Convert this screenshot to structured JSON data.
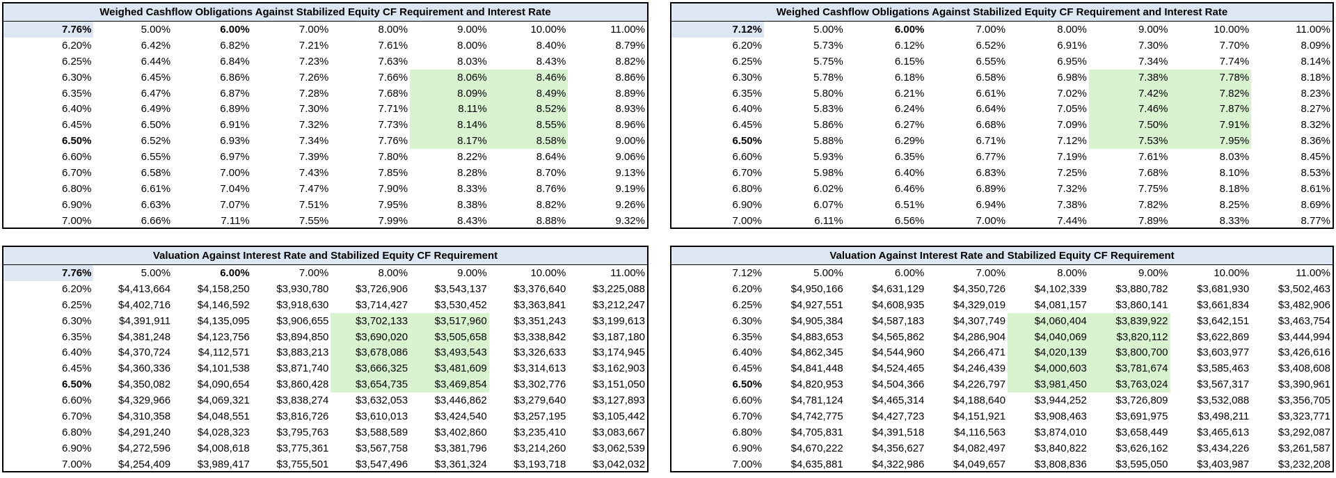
{
  "colors": {
    "title_fill": "#dde6f3",
    "highlight_green": "#d9f2d0",
    "corner_fill": "#dde6f3",
    "border": "#000000"
  },
  "panels": [
    {
      "id": "weighed-left",
      "title": "Weighed Cashflow Obligations Against Stabilized Equity CF Requirement and Interest Rate",
      "corner": "7.76%",
      "corner_bold": true,
      "corner_highlight": true,
      "bold_col": 1,
      "bold_row": 6,
      "green_cols": [
        4,
        5
      ],
      "green_rows": [
        2,
        3,
        4,
        5,
        6
      ],
      "headers": [
        "5.00%",
        "6.00%",
        "7.00%",
        "8.00%",
        "9.00%",
        "10.00%",
        "11.00%"
      ],
      "rows": [
        {
          "label": "6.20%",
          "values": [
            "6.42%",
            "6.82%",
            "7.21%",
            "7.61%",
            "8.00%",
            "8.40%",
            "8.79%"
          ]
        },
        {
          "label": "6.25%",
          "values": [
            "6.44%",
            "6.84%",
            "7.23%",
            "7.63%",
            "8.03%",
            "8.43%",
            "8.82%"
          ]
        },
        {
          "label": "6.30%",
          "values": [
            "6.45%",
            "6.86%",
            "7.26%",
            "7.66%",
            "8.06%",
            "8.46%",
            "8.86%"
          ]
        },
        {
          "label": "6.35%",
          "values": [
            "6.47%",
            "6.87%",
            "7.28%",
            "7.68%",
            "8.09%",
            "8.49%",
            "8.89%"
          ]
        },
        {
          "label": "6.40%",
          "values": [
            "6.49%",
            "6.89%",
            "7.30%",
            "7.71%",
            "8.11%",
            "8.52%",
            "8.93%"
          ]
        },
        {
          "label": "6.45%",
          "values": [
            "6.50%",
            "6.91%",
            "7.32%",
            "7.73%",
            "8.14%",
            "8.55%",
            "8.96%"
          ]
        },
        {
          "label": "6.50%",
          "values": [
            "6.52%",
            "6.93%",
            "7.34%",
            "7.76%",
            "8.17%",
            "8.58%",
            "9.00%"
          ]
        },
        {
          "label": "6.60%",
          "values": [
            "6.55%",
            "6.97%",
            "7.39%",
            "7.80%",
            "8.22%",
            "8.64%",
            "9.06%"
          ]
        },
        {
          "label": "6.70%",
          "values": [
            "6.58%",
            "7.00%",
            "7.43%",
            "7.85%",
            "8.28%",
            "8.70%",
            "9.13%"
          ]
        },
        {
          "label": "6.80%",
          "values": [
            "6.61%",
            "7.04%",
            "7.47%",
            "7.90%",
            "8.33%",
            "8.76%",
            "9.19%"
          ]
        },
        {
          "label": "6.90%",
          "values": [
            "6.63%",
            "7.07%",
            "7.51%",
            "7.95%",
            "8.38%",
            "8.82%",
            "9.26%"
          ]
        },
        {
          "label": "7.00%",
          "values": [
            "6.66%",
            "7.11%",
            "7.55%",
            "7.99%",
            "8.43%",
            "8.88%",
            "9.32%"
          ]
        }
      ]
    },
    {
      "id": "weighed-right",
      "title": "Weighed Cashflow Obligations Against Stabilized Equity CF Requirement and Interest Rate",
      "corner": "7.12%",
      "corner_bold": true,
      "corner_highlight": true,
      "bold_col": 1,
      "bold_row": 6,
      "green_cols": [
        4,
        5
      ],
      "green_rows": [
        2,
        3,
        4,
        5,
        6
      ],
      "headers": [
        "5.00%",
        "6.00%",
        "7.00%",
        "8.00%",
        "9.00%",
        "10.00%",
        "11.00%"
      ],
      "rows": [
        {
          "label": "6.20%",
          "values": [
            "5.73%",
            "6.12%",
            "6.52%",
            "6.91%",
            "7.30%",
            "7.70%",
            "8.09%"
          ]
        },
        {
          "label": "6.25%",
          "values": [
            "5.75%",
            "6.15%",
            "6.55%",
            "6.95%",
            "7.34%",
            "7.74%",
            "8.14%"
          ]
        },
        {
          "label": "6.30%",
          "values": [
            "5.78%",
            "6.18%",
            "6.58%",
            "6.98%",
            "7.38%",
            "7.78%",
            "8.18%"
          ]
        },
        {
          "label": "6.35%",
          "values": [
            "5.80%",
            "6.21%",
            "6.61%",
            "7.02%",
            "7.42%",
            "7.82%",
            "8.23%"
          ]
        },
        {
          "label": "6.40%",
          "values": [
            "5.83%",
            "6.24%",
            "6.64%",
            "7.05%",
            "7.46%",
            "7.87%",
            "8.27%"
          ]
        },
        {
          "label": "6.45%",
          "values": [
            "5.86%",
            "6.27%",
            "6.68%",
            "7.09%",
            "7.50%",
            "7.91%",
            "8.32%"
          ]
        },
        {
          "label": "6.50%",
          "values": [
            "5.88%",
            "6.29%",
            "6.71%",
            "7.12%",
            "7.53%",
            "7.95%",
            "8.36%"
          ]
        },
        {
          "label": "6.60%",
          "values": [
            "5.93%",
            "6.35%",
            "6.77%",
            "7.19%",
            "7.61%",
            "8.03%",
            "8.45%"
          ]
        },
        {
          "label": "6.70%",
          "values": [
            "5.98%",
            "6.40%",
            "6.83%",
            "7.25%",
            "7.68%",
            "8.10%",
            "8.53%"
          ]
        },
        {
          "label": "6.80%",
          "values": [
            "6.02%",
            "6.46%",
            "6.89%",
            "7.32%",
            "7.75%",
            "8.18%",
            "8.61%"
          ]
        },
        {
          "label": "6.90%",
          "values": [
            "6.07%",
            "6.51%",
            "6.94%",
            "7.38%",
            "7.82%",
            "8.25%",
            "8.69%"
          ]
        },
        {
          "label": "7.00%",
          "values": [
            "6.11%",
            "6.56%",
            "7.00%",
            "7.44%",
            "7.89%",
            "8.33%",
            "8.77%"
          ]
        }
      ]
    },
    {
      "id": "valuation-left",
      "title": "Valuation Against Interest Rate and Stabilized Equity CF Requirement",
      "corner": "7.76%",
      "corner_bold": true,
      "corner_highlight": true,
      "bold_col": 1,
      "bold_row": 6,
      "green_cols": [
        3,
        4
      ],
      "green_rows": [
        2,
        3,
        4,
        5,
        6
      ],
      "headers": [
        "5.00%",
        "6.00%",
        "7.00%",
        "8.00%",
        "9.00%",
        "10.00%",
        "11.00%"
      ],
      "rows": [
        {
          "label": "6.20%",
          "values": [
            "$4,413,664",
            "$4,158,250",
            "$3,930,780",
            "$3,726,906",
            "$3,543,137",
            "$3,376,640",
            "$3,225,088"
          ]
        },
        {
          "label": "6.25%",
          "values": [
            "$4,402,716",
            "$4,146,592",
            "$3,918,630",
            "$3,714,427",
            "$3,530,452",
            "$3,363,841",
            "$3,212,247"
          ]
        },
        {
          "label": "6.30%",
          "values": [
            "$4,391,911",
            "$4,135,095",
            "$3,906,655",
            "$3,702,133",
            "$3,517,960",
            "$3,351,243",
            "$3,199,613"
          ]
        },
        {
          "label": "6.35%",
          "values": [
            "$4,381,248",
            "$4,123,756",
            "$3,894,850",
            "$3,690,020",
            "$3,505,658",
            "$3,338,842",
            "$3,187,180"
          ]
        },
        {
          "label": "6.40%",
          "values": [
            "$4,370,724",
            "$4,112,571",
            "$3,883,213",
            "$3,678,086",
            "$3,493,543",
            "$3,326,633",
            "$3,174,945"
          ]
        },
        {
          "label": "6.45%",
          "values": [
            "$4,360,336",
            "$4,101,538",
            "$3,871,740",
            "$3,666,325",
            "$3,481,609",
            "$3,314,613",
            "$3,162,903"
          ]
        },
        {
          "label": "6.50%",
          "values": [
            "$4,350,082",
            "$4,090,654",
            "$3,860,428",
            "$3,654,735",
            "$3,469,854",
            "$3,302,776",
            "$3,151,050"
          ]
        },
        {
          "label": "6.60%",
          "values": [
            "$4,329,966",
            "$4,069,321",
            "$3,838,274",
            "$3,632,053",
            "$3,446,862",
            "$3,279,640",
            "$3,127,893"
          ]
        },
        {
          "label": "6.70%",
          "values": [
            "$4,310,358",
            "$4,048,551",
            "$3,816,726",
            "$3,610,013",
            "$3,424,540",
            "$3,257,195",
            "$3,105,442"
          ]
        },
        {
          "label": "6.80%",
          "values": [
            "$4,291,240",
            "$4,028,323",
            "$3,795,763",
            "$3,588,589",
            "$3,402,860",
            "$3,235,410",
            "$3,083,667"
          ]
        },
        {
          "label": "6.90%",
          "values": [
            "$4,272,596",
            "$4,008,618",
            "$3,775,361",
            "$3,567,758",
            "$3,381,796",
            "$3,214,260",
            "$3,062,539"
          ]
        },
        {
          "label": "7.00%",
          "values": [
            "$4,254,409",
            "$3,989,417",
            "$3,755,501",
            "$3,547,496",
            "$3,361,324",
            "$3,193,718",
            "$3,042,032"
          ]
        }
      ]
    },
    {
      "id": "valuation-right",
      "title": "Valuation Against Interest Rate and Stabilized Equity CF Requirement",
      "corner": "7.12%",
      "corner_bold": false,
      "corner_highlight": false,
      "bold_col": -1,
      "bold_row": 6,
      "green_cols": [
        3,
        4
      ],
      "green_rows": [
        2,
        3,
        4,
        5,
        6
      ],
      "headers": [
        "5.00%",
        "6.00%",
        "7.00%",
        "8.00%",
        "9.00%",
        "10.00%",
        "11.00%"
      ],
      "rows": [
        {
          "label": "6.20%",
          "values": [
            "$4,950,166",
            "$4,631,129",
            "$4,350,726",
            "$4,102,339",
            "$3,880,782",
            "$3,681,930",
            "$3,502,463"
          ]
        },
        {
          "label": "6.25%",
          "values": [
            "$4,927,551",
            "$4,608,935",
            "$4,329,019",
            "$4,081,157",
            "$3,860,141",
            "$3,661,834",
            "$3,482,906"
          ]
        },
        {
          "label": "6.30%",
          "values": [
            "$4,905,384",
            "$4,587,183",
            "$4,307,749",
            "$4,060,404",
            "$3,839,922",
            "$3,642,151",
            "$3,463,754"
          ]
        },
        {
          "label": "6.35%",
          "values": [
            "$4,883,653",
            "$4,565,862",
            "$4,286,904",
            "$4,040,069",
            "$3,820,112",
            "$3,622,869",
            "$3,444,994"
          ]
        },
        {
          "label": "6.40%",
          "values": [
            "$4,862,345",
            "$4,544,960",
            "$4,266,471",
            "$4,020,139",
            "$3,800,700",
            "$3,603,977",
            "$3,426,616"
          ]
        },
        {
          "label": "6.45%",
          "values": [
            "$4,841,448",
            "$4,524,465",
            "$4,246,439",
            "$4,000,603",
            "$3,781,674",
            "$3,585,463",
            "$3,408,608"
          ]
        },
        {
          "label": "6.50%",
          "values": [
            "$4,820,953",
            "$4,504,366",
            "$4,226,797",
            "$3,981,450",
            "$3,763,024",
            "$3,567,317",
            "$3,390,961"
          ]
        },
        {
          "label": "6.60%",
          "values": [
            "$4,781,124",
            "$4,465,314",
            "$4,188,640",
            "$3,944,252",
            "$3,726,809",
            "$3,532,088",
            "$3,356,705"
          ]
        },
        {
          "label": "6.70%",
          "values": [
            "$4,742,775",
            "$4,427,723",
            "$4,151,921",
            "$3,908,463",
            "$3,691,975",
            "$3,498,211",
            "$3,323,771"
          ]
        },
        {
          "label": "6.80%",
          "values": [
            "$4,705,831",
            "$4,391,518",
            "$4,116,563",
            "$3,874,010",
            "$3,658,449",
            "$3,465,613",
            "$3,292,087"
          ]
        },
        {
          "label": "6.90%",
          "values": [
            "$4,670,222",
            "$4,356,627",
            "$4,082,497",
            "$3,840,822",
            "$3,626,162",
            "$3,434,226",
            "$3,261,587"
          ]
        },
        {
          "label": "7.00%",
          "values": [
            "$4,635,881",
            "$4,322,986",
            "$4,049,657",
            "$3,808,836",
            "$3,595,050",
            "$3,403,987",
            "$3,232,208"
          ]
        }
      ]
    }
  ]
}
